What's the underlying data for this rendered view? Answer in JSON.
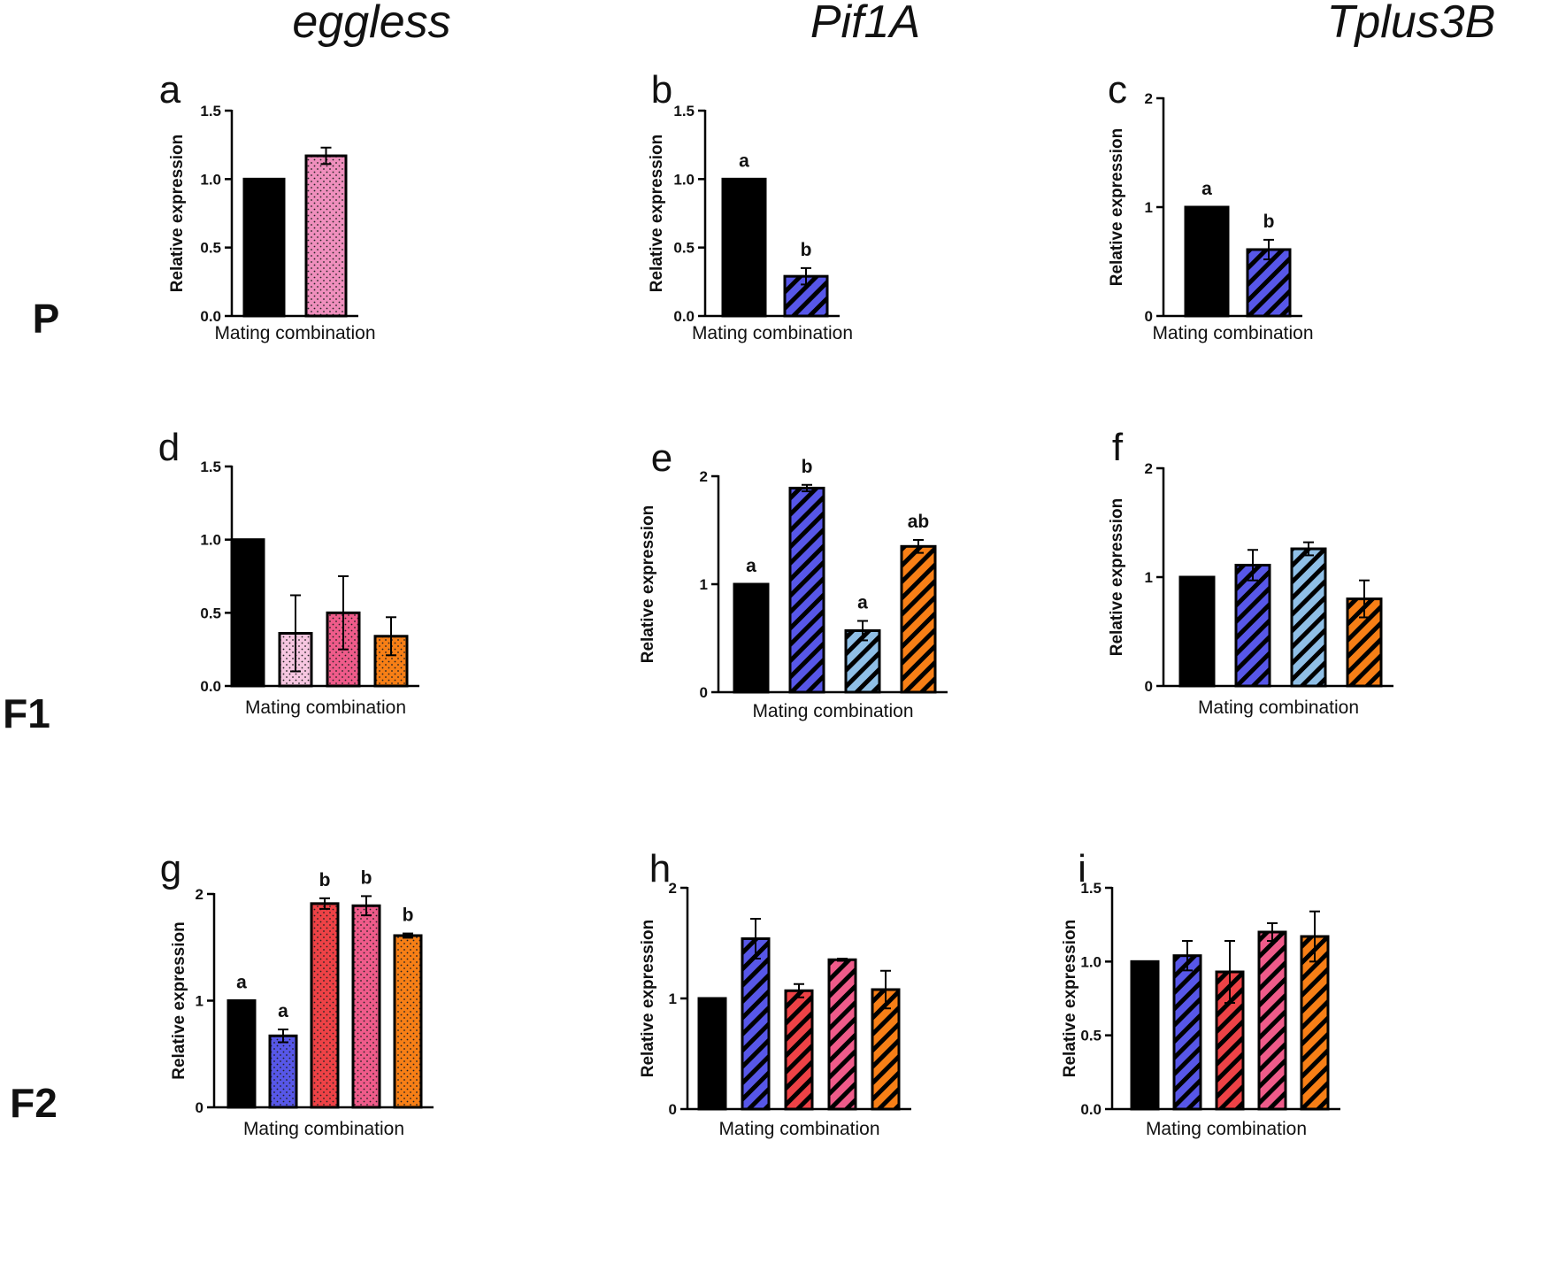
{
  "col_headers": [
    "eggless",
    "Pif1A",
    "Tplus3B"
  ],
  "row_labels": [
    "P",
    "F1",
    "F2"
  ],
  "colors": {
    "black": "#000000",
    "pink": "#ef8fbd",
    "light_pink": "#f6c6e0",
    "rose": "#ef5b8a",
    "orange": "#f77f16",
    "blue": "#5757e8",
    "light_blue": "#8fbfe6",
    "red": "#ee4246"
  },
  "chart_data": [
    {
      "id": "a",
      "type": "bar",
      "panel_label": "a",
      "ylabel": "Relative expression",
      "xlabel": "Mating combination",
      "ylim": [
        0,
        1.5
      ],
      "yticks": [
        "0.0",
        "0.5",
        "1.0",
        "1.5"
      ],
      "values": [
        1.0,
        1.17
      ],
      "errors": [
        0,
        0.06
      ],
      "colors": [
        "black",
        "pink"
      ],
      "patterns": [
        "solid",
        "dots"
      ],
      "sig": [
        "",
        ""
      ]
    },
    {
      "id": "b",
      "type": "bar",
      "panel_label": "b",
      "ylabel": "Relative expression",
      "xlabel": "Mating combination",
      "ylim": [
        0,
        1.5
      ],
      "yticks": [
        "0.0",
        "0.5",
        "1.0",
        "1.5"
      ],
      "values": [
        1.0,
        0.29
      ],
      "errors": [
        0,
        0.06
      ],
      "colors": [
        "black",
        "blue"
      ],
      "patterns": [
        "solid",
        "stripes"
      ],
      "sig": [
        "a",
        "b"
      ]
    },
    {
      "id": "c",
      "type": "bar",
      "panel_label": "c",
      "ylabel": "Relative expression",
      "xlabel": "Mating combination",
      "ylim": [
        0,
        2
      ],
      "yticks": [
        "0",
        "1",
        "2"
      ],
      "values": [
        1.0,
        0.61
      ],
      "errors": [
        0,
        0.09
      ],
      "colors": [
        "black",
        "blue"
      ],
      "patterns": [
        "solid",
        "stripes"
      ],
      "sig": [
        "a",
        "b"
      ]
    },
    {
      "id": "d",
      "type": "bar",
      "panel_label": "d",
      "ylabel": "",
      "xlabel": "Mating combination",
      "ylim": [
        0,
        1.5
      ],
      "yticks": [
        "0.0",
        "0.5",
        "1.0",
        "1.5"
      ],
      "values": [
        1.0,
        0.36,
        0.5,
        0.34
      ],
      "errors": [
        0,
        0.26,
        0.25,
        0.13
      ],
      "colors": [
        "black",
        "light_pink",
        "rose",
        "orange"
      ],
      "patterns": [
        "solid",
        "dots",
        "dots",
        "dots"
      ],
      "sig": [
        "",
        "",
        "",
        ""
      ]
    },
    {
      "id": "e",
      "type": "bar",
      "panel_label": "e",
      "ylabel": "Relative expression",
      "xlabel": "Mating combination",
      "ylim": [
        0,
        2
      ],
      "yticks": [
        "0",
        "1",
        "2"
      ],
      "values": [
        1.0,
        1.89,
        0.57,
        1.35
      ],
      "errors": [
        0,
        0.03,
        0.09,
        0.06
      ],
      "colors": [
        "black",
        "blue",
        "light_blue",
        "orange"
      ],
      "patterns": [
        "solid",
        "stripes",
        "stripes",
        "stripes"
      ],
      "sig": [
        "a",
        "b",
        "a",
        "ab"
      ]
    },
    {
      "id": "f",
      "type": "bar",
      "panel_label": "f",
      "ylabel": "Relative expression",
      "xlabel": "Mating combination",
      "ylim": [
        0,
        2
      ],
      "yticks": [
        "0",
        "1",
        "2"
      ],
      "values": [
        1.0,
        1.11,
        1.26,
        0.8
      ],
      "errors": [
        0,
        0.14,
        0.06,
        0.17
      ],
      "colors": [
        "black",
        "blue",
        "light_blue",
        "orange"
      ],
      "patterns": [
        "solid",
        "stripes",
        "stripes",
        "stripes"
      ],
      "sig": [
        "",
        "",
        "",
        ""
      ]
    },
    {
      "id": "g",
      "type": "bar",
      "panel_label": "g",
      "ylabel": "Relative expression",
      "xlabel": "Mating combination",
      "ylim": [
        0,
        2
      ],
      "yticks": [
        "0",
        "1",
        "2"
      ],
      "values": [
        1.0,
        0.67,
        1.91,
        1.89,
        1.61
      ],
      "errors": [
        0,
        0.06,
        0.05,
        0.09,
        0.02
      ],
      "colors": [
        "black",
        "blue",
        "red",
        "rose",
        "orange"
      ],
      "patterns": [
        "solid",
        "dots",
        "dots",
        "dots",
        "dots"
      ],
      "sig": [
        "a",
        "a",
        "b",
        "b",
        "b"
      ]
    },
    {
      "id": "h",
      "type": "bar",
      "panel_label": "h",
      "ylabel": "Relative expression",
      "xlabel": "Mating combination",
      "ylim": [
        0,
        2
      ],
      "yticks": [
        "0",
        "1",
        "2"
      ],
      "values": [
        1.0,
        1.54,
        1.07,
        1.35,
        1.08
      ],
      "errors": [
        0,
        0.18,
        0.06,
        0.01,
        0.17
      ],
      "colors": [
        "black",
        "blue",
        "red",
        "rose",
        "orange"
      ],
      "patterns": [
        "solid",
        "stripes",
        "stripes",
        "stripes",
        "stripes"
      ],
      "sig": [
        "",
        "",
        "",
        "",
        ""
      ]
    },
    {
      "id": "i",
      "type": "bar",
      "panel_label": "i",
      "ylabel": "Relative expression",
      "xlabel": "Mating combination",
      "ylim": [
        0,
        1.5
      ],
      "yticks": [
        "0.0",
        "0.5",
        "1.0",
        "1.5"
      ],
      "values": [
        1.0,
        1.04,
        0.93,
        1.2,
        1.17
      ],
      "errors": [
        0,
        0.1,
        0.21,
        0.06,
        0.17
      ],
      "colors": [
        "black",
        "blue",
        "red",
        "rose",
        "orange"
      ],
      "patterns": [
        "solid",
        "stripes",
        "stripes",
        "stripes",
        "stripes"
      ],
      "sig": [
        "",
        "",
        "",
        "",
        ""
      ]
    }
  ]
}
